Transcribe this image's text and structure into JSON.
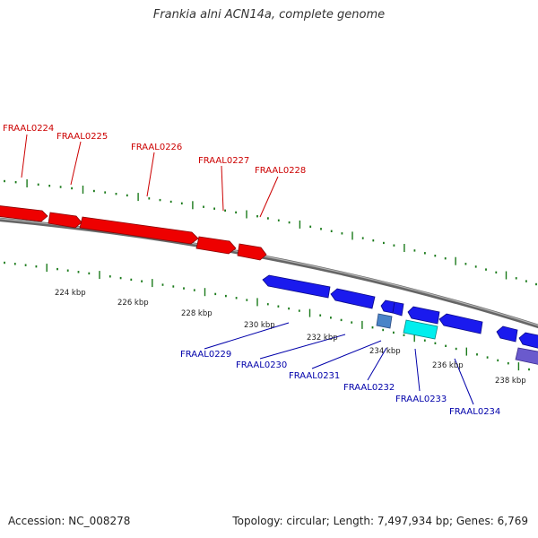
{
  "title": "Frankia alni ACN14a, complete genome",
  "footer": {
    "accession": "Accession: NC_008278",
    "topology": "Topology: circular; Length: 7,497,934 bp; Genes: 6,769"
  },
  "colors": {
    "forward_gene": "#ff0000",
    "reverse_gene": "#1a1aee",
    "backbone": "#7f7f7f",
    "tick": "#1a7a1a",
    "forward_label": "#cc0000",
    "reverse_label": "#0000aa"
  },
  "scale_labels": [
    "224 kbp",
    "226 kbp",
    "228 kbp",
    "230 kbp",
    "232 kbp",
    "234 kbp",
    "236 kbp",
    "238 kbp"
  ],
  "forward_genes": [
    {
      "label": "FRAAL0224"
    },
    {
      "label": "FRAAL0225"
    },
    {
      "label": "FRAAL0226"
    },
    {
      "label": "FRAAL0227"
    },
    {
      "label": "FRAAL0228"
    }
  ],
  "reverse_genes": [
    {
      "label": "FRAAL0229"
    },
    {
      "label": "FRAAL0230"
    },
    {
      "label": "FRAAL0231"
    },
    {
      "label": "FRAAL0232"
    },
    {
      "label": "FRAAL0233"
    },
    {
      "label": "FRAAL0234"
    }
  ]
}
